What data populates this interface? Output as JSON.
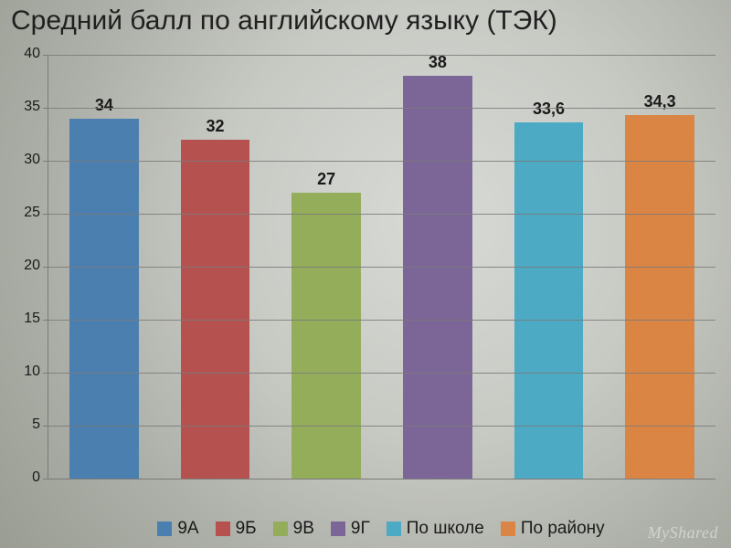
{
  "title": "Средний балл по английскому языку (ТЭК)",
  "watermark": "MyShared",
  "chart": {
    "type": "bar",
    "ylim": [
      0,
      40
    ],
    "ytick_step": 5,
    "yticks": [
      0,
      5,
      10,
      15,
      20,
      25,
      30,
      35,
      40
    ],
    "axis_color": "#7a7a7a",
    "grid_color": "#7a7a7a",
    "label_color": "#1a1a1a",
    "tick_fontsize": 16,
    "data_label_fontsize": 18,
    "legend_fontsize": 19,
    "bar_width_ratio": 0.62,
    "series": [
      {
        "name": "9А",
        "value": 34,
        "label": "34",
        "color": "#4a7fb0",
        "legend": "9А"
      },
      {
        "name": "9Б",
        "value": 32,
        "label": "32",
        "color": "#b5524f",
        "legend": "9Б"
      },
      {
        "name": "9В",
        "value": 27,
        "label": "27",
        "color": "#94ad5b",
        "legend": "9В"
      },
      {
        "name": "9Г",
        "value": 38,
        "label": "38",
        "color": "#7c6698",
        "legend": "9Г"
      },
      {
        "name": "По школе",
        "value": 33.6,
        "label": "33,6",
        "color": "#4caac4",
        "legend": "По школе"
      },
      {
        "name": "По району",
        "value": 34.3,
        "label": "34,3",
        "color": "#db8545",
        "legend": "По району"
      }
    ]
  }
}
